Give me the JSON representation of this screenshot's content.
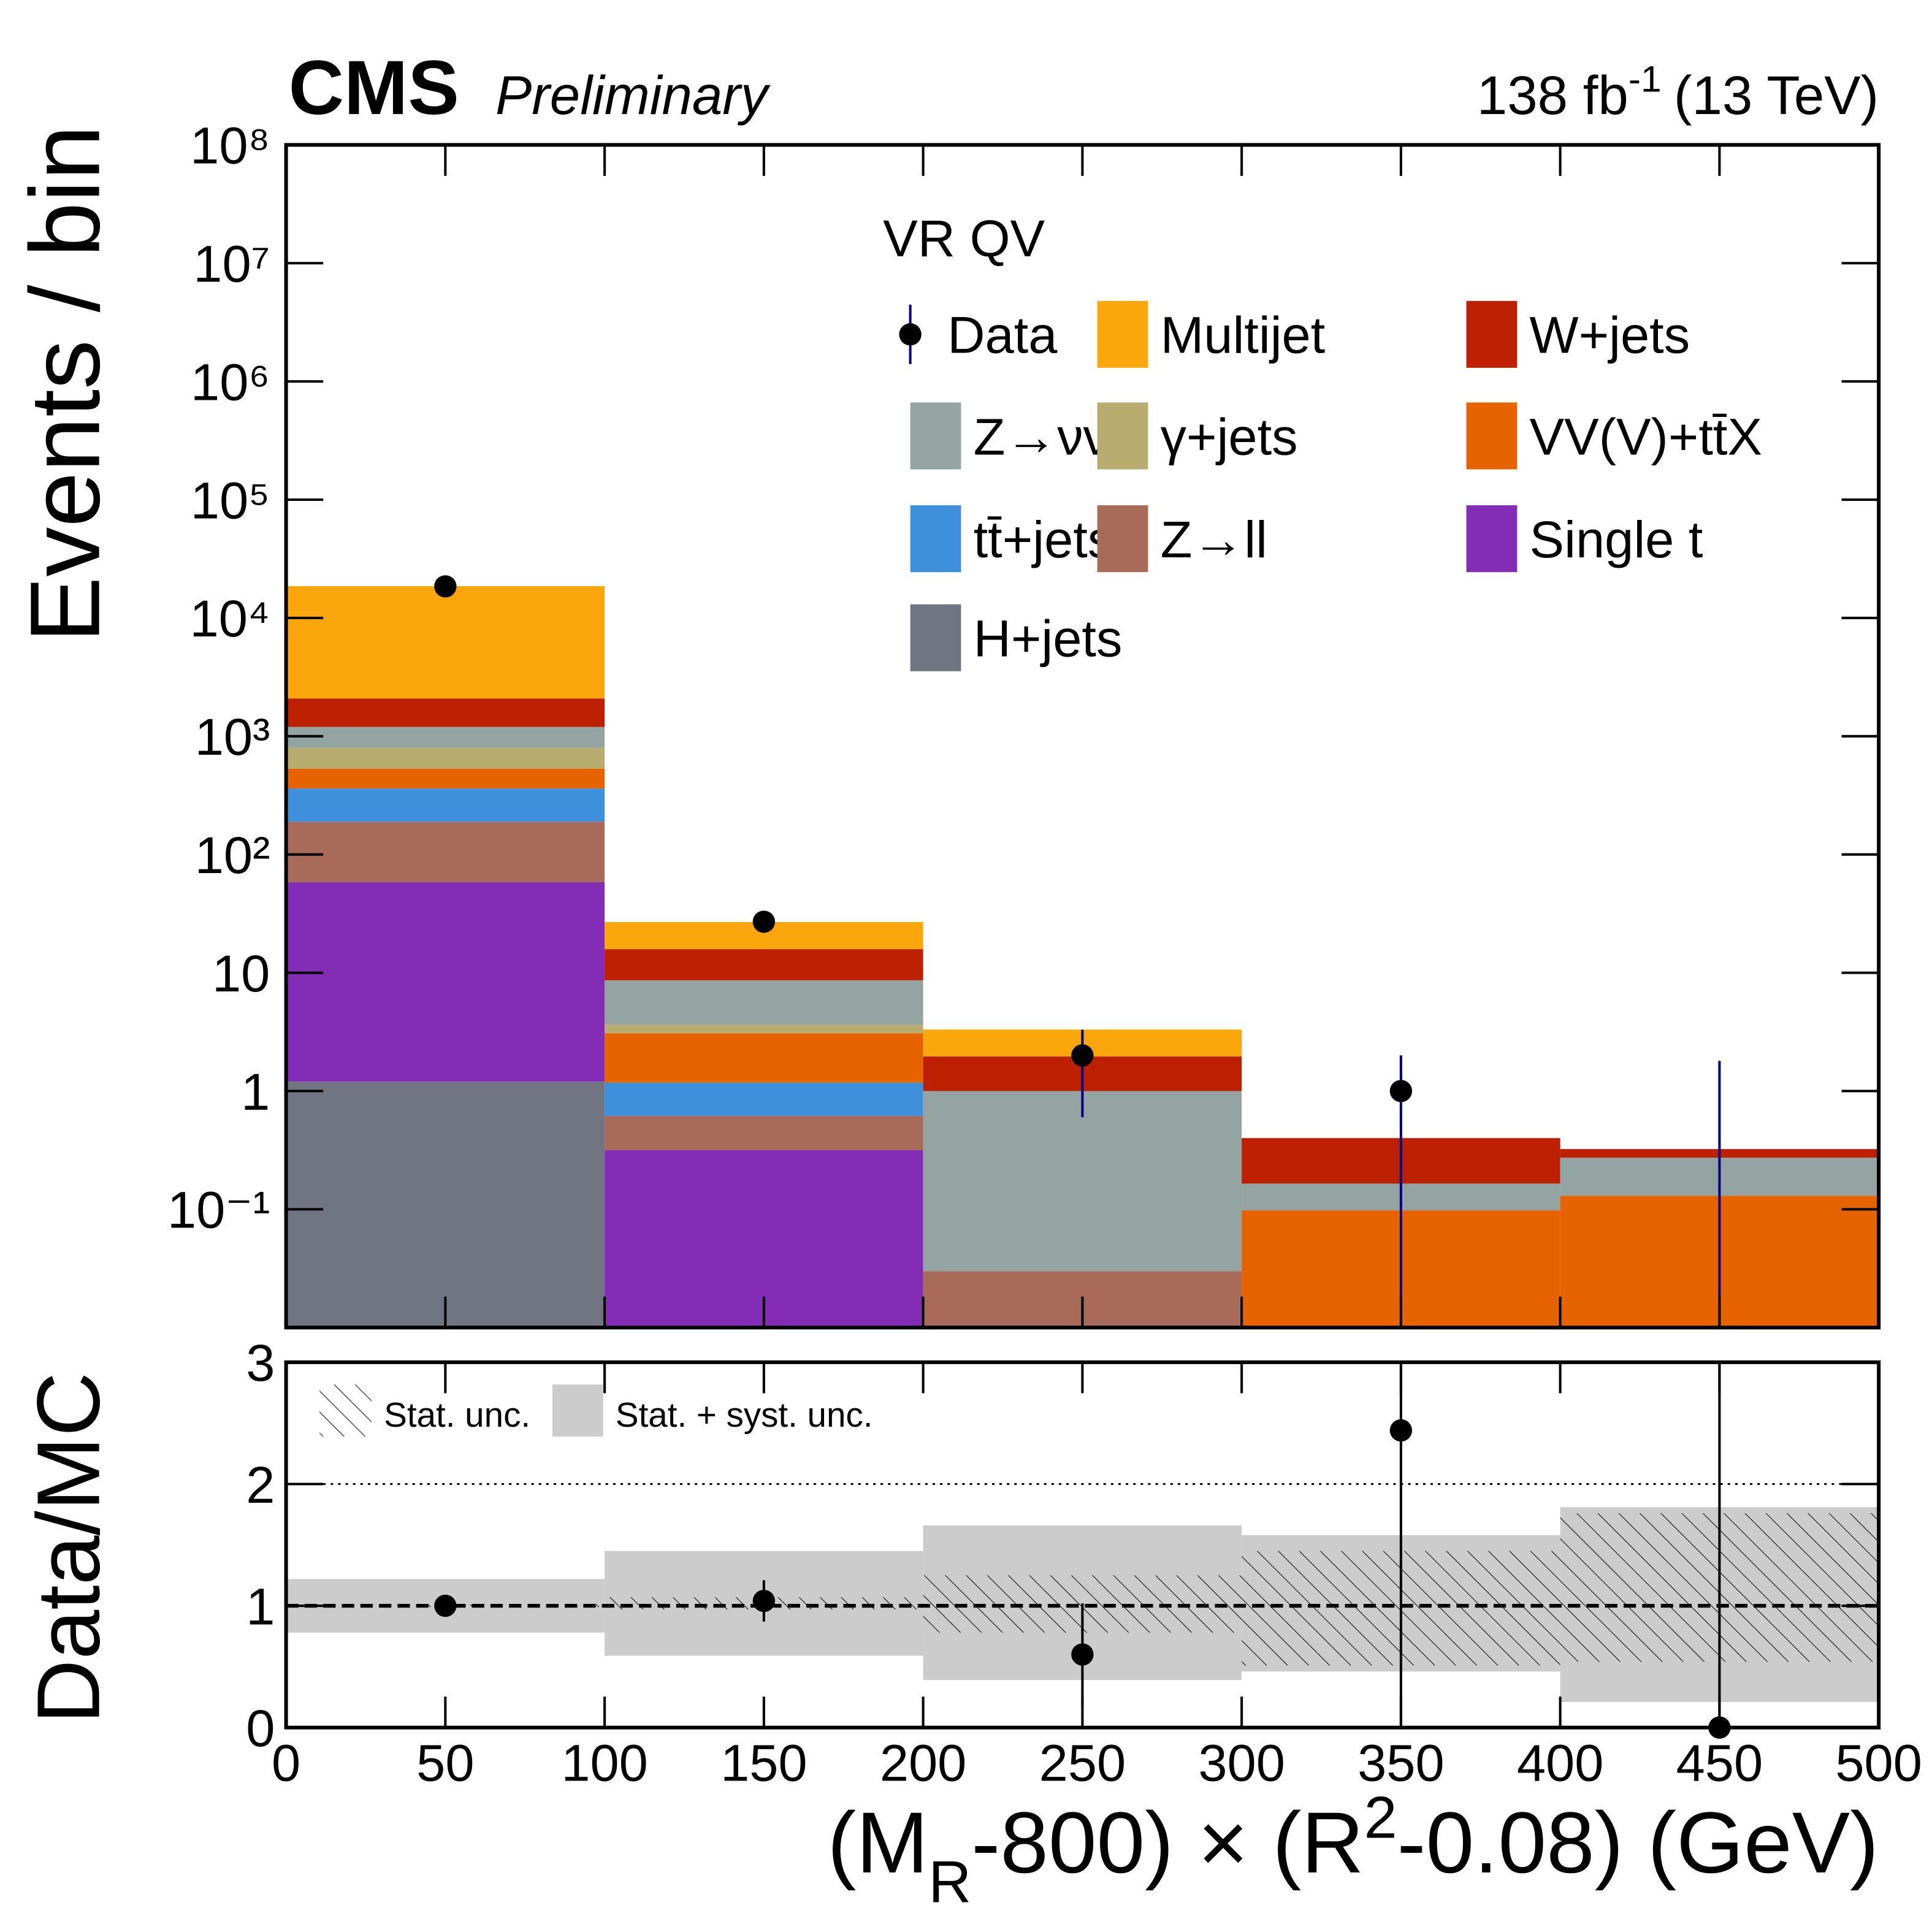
{
  "chart_data": {
    "type": "stacked_histogram_ratio",
    "experiment": "CMS",
    "status": "Preliminary",
    "lumi": {
      "text": "138 fb",
      "sup": "-1",
      "energy": "(13 TeV)"
    },
    "region": "VR QV",
    "y_label": "Events / bin",
    "x_label": {
      "a": "(M",
      "sub": "R",
      "b": "-800) × (R",
      "sup": "2",
      "c": "-0.08) (GeV)"
    },
    "bins": [
      0,
      100,
      200,
      300,
      400,
      500
    ],
    "xlim": [
      0,
      500
    ],
    "xticks": [
      0,
      50,
      100,
      150,
      200,
      250,
      300,
      350,
      400,
      450,
      500
    ],
    "log_y": true,
    "ylim": [
      0.01,
      100000000
    ],
    "yticks": [
      {
        "value": 100000000,
        "label": "10⁸"
      },
      {
        "value": 10000000,
        "label": "10⁷"
      },
      {
        "value": 1000000,
        "label": "10⁶"
      },
      {
        "value": 100000,
        "label": "10⁵"
      },
      {
        "value": 10000,
        "label": "10⁴"
      },
      {
        "value": 1000,
        "label": "10³"
      },
      {
        "value": 100,
        "label": "10²"
      },
      10,
      1,
      {
        "value": 0.1,
        "label": "10⁻¹"
      }
    ],
    "data": {
      "name": "Data",
      "color": "#000000",
      "err_color": "#00008b",
      "values": [
        18500,
        27,
        2,
        1,
        0
      ],
      "err_low": [
        136,
        5.2,
        1.4,
        1,
        0
      ],
      "err_high": [
        136,
        5.2,
        1.3,
        1,
        1.8
      ]
    },
    "series": [
      {
        "name": "Multijet",
        "color": "#fca60d",
        "values": [
          16500,
          11,
          1.35,
          0,
          0
        ]
      },
      {
        "name": "W+jets",
        "color": "#bd1f01",
        "values": [
          886,
          7.2,
          0.96,
          0.235,
          0.05
        ]
      },
      {
        "name": "Z→νν",
        "color": "#94a4a2",
        "values": [
          402,
          5.0,
          0.97,
          0.067,
          0.143
        ]
      },
      {
        "name": "γ+jets",
        "color": "#b9ac70",
        "values": [
          268,
          0.56,
          0,
          0,
          0
        ]
      },
      {
        "name": "VV(V)+tt̄X",
        "color": "#e76300",
        "values": [
          169,
          1.9,
          0,
          0.098,
          0.13
        ]
      },
      {
        "name": "tt̄+jets",
        "color": "#3f90da",
        "values": [
          172,
          0.56,
          0,
          0,
          0
        ]
      },
      {
        "name": "Z→ll",
        "color": "#a96b59",
        "values": [
          131,
          0.3,
          0.03,
          0,
          0
        ]
      },
      {
        "name": "Single t",
        "color": "#832db6",
        "values": [
          57,
          0.316,
          0,
          0,
          0
        ]
      },
      {
        "name": "H+jets",
        "color": "#717581",
        "values": [
          1.2,
          0,
          0,
          0,
          0
        ]
      }
    ],
    "ratio": {
      "y_label": "Data/MC",
      "ylim": [
        0,
        3
      ],
      "yticks": [
        0,
        1,
        2,
        3
      ],
      "hlines": [
        {
          "value": 1,
          "style": "dashed"
        },
        {
          "value": 2,
          "style": "dotted"
        }
      ],
      "values": [
        1.0,
        1.04,
        0.6,
        2.44,
        0
      ],
      "err_low": [
        0.01,
        0.17,
        0.42,
        2.44,
        0
      ],
      "err_high": [
        0.01,
        0.17,
        0.42,
        2.45,
        4
      ],
      "syst_band": {
        "name": "Stat. + syst. unc.",
        "color": "#cccccc",
        "low": [
          0.78,
          0.59,
          0.39,
          0.46,
          0.21
        ],
        "high": [
          1.22,
          1.45,
          1.66,
          1.58,
          1.81
        ]
      },
      "stat_band": {
        "name": "Stat. unc.",
        "low": [
          0.99,
          0.97,
          0.78,
          0.51,
          0.54
        ],
        "high": [
          1.01,
          1.07,
          1.25,
          1.45,
          1.76
        ]
      }
    }
  }
}
